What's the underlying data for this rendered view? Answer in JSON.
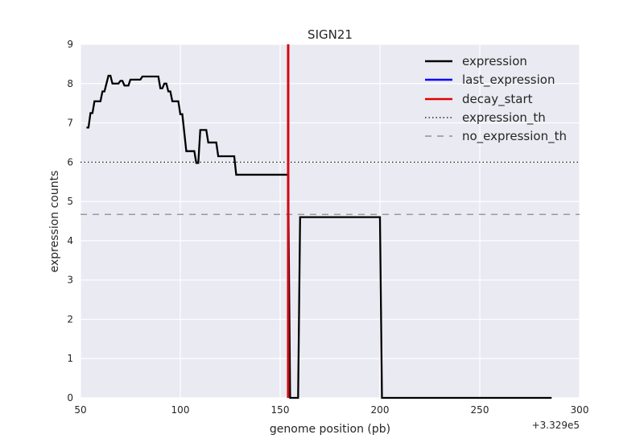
{
  "chart_data": {
    "type": "line",
    "title": "SIGN21",
    "xlabel": "genome position (pb)",
    "ylabel": "expression counts",
    "x_offset_label": "+3.329e5",
    "xlim": [
      50,
      300
    ],
    "ylim": [
      0,
      9
    ],
    "xticks": [
      50,
      100,
      150,
      200,
      250,
      300
    ],
    "yticks": [
      0,
      1,
      2,
      3,
      4,
      5,
      6,
      7,
      8,
      9
    ],
    "grid": true,
    "legend_placement": "top-right",
    "series": [
      {
        "name": "expression",
        "style": "solid",
        "color": "#000000",
        "x": [
          53,
          54,
          55,
          56,
          57,
          58,
          59,
          60,
          61,
          62,
          63,
          64,
          65,
          66,
          67,
          68,
          69,
          70,
          71,
          72,
          73,
          74,
          75,
          76,
          77,
          78,
          79,
          80,
          81,
          82,
          83,
          84,
          85,
          86,
          87,
          88,
          89,
          90,
          91,
          92,
          93,
          94,
          95,
          96,
          97,
          98,
          99,
          100,
          101,
          102,
          103,
          104,
          105,
          106,
          107,
          108,
          109,
          110,
          111,
          112,
          113,
          114,
          115,
          116,
          117,
          118,
          119,
          120,
          121,
          122,
          123,
          124,
          125,
          126,
          127,
          128,
          129,
          130,
          131,
          132,
          133,
          134,
          154,
          155,
          159,
          160,
          200,
          201,
          286
        ],
        "values": [
          6.88,
          6.88,
          7.25,
          7.25,
          7.55,
          7.55,
          7.55,
          7.55,
          7.8,
          7.8,
          8.0,
          8.2,
          8.2,
          8.0,
          8.0,
          8.0,
          8.0,
          8.07,
          8.07,
          7.95,
          7.95,
          7.95,
          8.1,
          8.1,
          8.1,
          8.1,
          8.1,
          8.1,
          8.18,
          8.18,
          8.18,
          8.18,
          8.18,
          8.18,
          8.18,
          8.18,
          8.18,
          7.88,
          7.88,
          8.0,
          8.0,
          7.8,
          7.8,
          7.55,
          7.55,
          7.55,
          7.55,
          7.22,
          7.22,
          6.75,
          6.28,
          6.28,
          6.28,
          6.28,
          6.28,
          5.98,
          5.98,
          6.82,
          6.82,
          6.82,
          6.82,
          6.5,
          6.5,
          6.5,
          6.5,
          6.5,
          6.15,
          6.15,
          6.15,
          6.15,
          6.15,
          6.15,
          6.15,
          6.15,
          6.15,
          5.68,
          5.68,
          5.68,
          5.68,
          5.68,
          5.68,
          5.68,
          5.68,
          0.0,
          0.0,
          4.6,
          4.6,
          0.0,
          0.0
        ]
      },
      {
        "name": "last_expression",
        "style": "solid",
        "color": "#0000ff",
        "x": [
          154,
          154
        ],
        "values": [
          0,
          9
        ]
      },
      {
        "name": "decay_start",
        "style": "solid",
        "color": "#e00000",
        "x": [
          154,
          154
        ],
        "values": [
          0,
          9
        ]
      },
      {
        "name": "expression_th",
        "style": "dotted",
        "color": "#000000",
        "y_constant": 6.0
      },
      {
        "name": "no_expression_th",
        "style": "dashed",
        "color": "#808080",
        "y_constant": 4.67
      }
    ]
  }
}
